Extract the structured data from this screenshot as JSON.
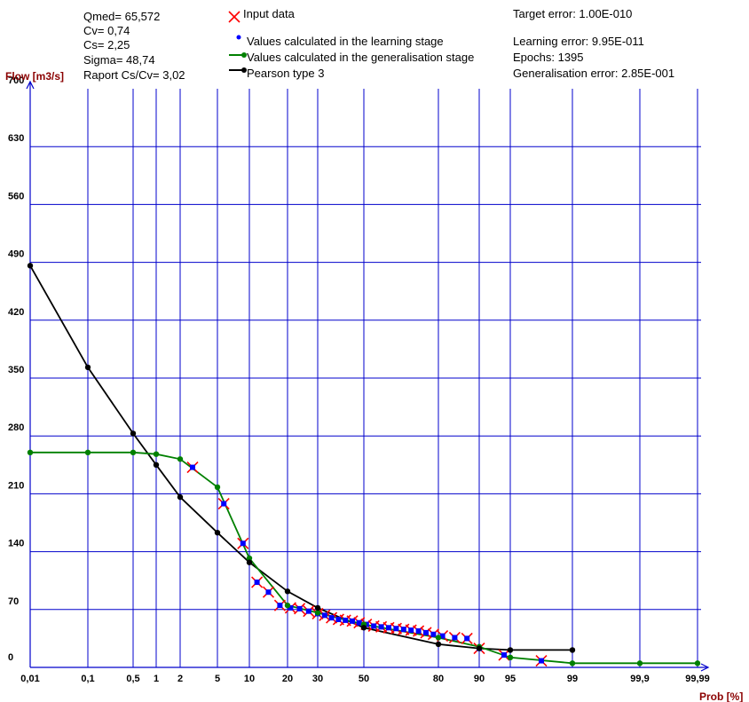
{
  "stats": [
    "Qmed= 65,572",
    "Cv= 0,74",
    "Cs= 2,25",
    "Sigma= 48,74",
    "Raport Cs/Cv= 3,02"
  ],
  "info": [
    "Target error: 1.00E-010",
    "Learning error: 9.95E-011",
    "Epochs: 1395",
    "Generalisation error: 2.85E-001"
  ],
  "colors": {
    "grid": "#0000cc",
    "input": "#ff0000",
    "learning": "#0000ff",
    "generalisation": "#008000",
    "pearson": "#000000",
    "axis_title": "#8b0000"
  },
  "chart_data": {
    "type": "line",
    "xlabel": "Prob [%]",
    "ylabel": "Flow [m3/s]",
    "x_scale": "probability",
    "ylim": [
      0,
      700
    ],
    "grid": true,
    "legend_position": "top-center",
    "x_ticks": [
      0.01,
      0.1,
      0.5,
      1,
      2,
      5,
      10,
      20,
      30,
      50,
      80,
      90,
      95,
      99,
      99.9,
      99.99
    ],
    "x_tick_labels": [
      "0,01",
      "0,1",
      "0,5",
      "1",
      "2",
      "5",
      "10",
      "20",
      "30",
      "50",
      "80",
      "90",
      "95",
      "99",
      "99,9",
      "99,99"
    ],
    "y_ticks": [
      0,
      70,
      140,
      210,
      280,
      350,
      420,
      490,
      560,
      630,
      700
    ],
    "series": [
      {
        "name": "Input data",
        "marker": "x",
        "x": [
          3,
          6,
          9,
          12,
          15,
          18,
          21,
          24,
          27,
          30,
          33,
          36,
          39,
          42,
          45,
          48,
          51,
          54,
          57,
          60,
          63,
          66,
          69,
          72,
          75,
          78,
          81,
          84,
          87,
          90,
          94,
          97
        ],
        "values": [
          242,
          198,
          150,
          103,
          91,
          75,
          72,
          71,
          68,
          65,
          63,
          60,
          58,
          57,
          56,
          54,
          52,
          50,
          49,
          48,
          47,
          46,
          45,
          44,
          42,
          40,
          38,
          36,
          35,
          23,
          15,
          8
        ]
      },
      {
        "name": "Values calculated in the learning stage",
        "marker": "dot",
        "x": [
          3,
          6,
          9,
          12,
          15,
          18,
          21,
          24,
          27,
          30,
          33,
          36,
          39,
          42,
          45,
          48,
          51,
          54,
          57,
          60,
          63,
          66,
          69,
          72,
          75,
          78,
          81,
          84,
          87,
          90,
          94,
          97
        ],
        "values": [
          242,
          198,
          150,
          103,
          91,
          75,
          72,
          71,
          68,
          65,
          63,
          60,
          58,
          57,
          56,
          54,
          52,
          50,
          49,
          48,
          47,
          46,
          45,
          44,
          42,
          40,
          38,
          36,
          35,
          23,
          15,
          8
        ]
      },
      {
        "name": "Values calculated in the generalisation stage",
        "marker": "dot",
        "x": [
          0.01,
          0.1,
          0.5,
          1,
          2,
          5,
          10,
          20,
          30,
          50,
          80,
          90,
          95,
          99,
          99.9,
          99.99
        ],
        "values": [
          260,
          260,
          260,
          258,
          252,
          218,
          132,
          75,
          66,
          52,
          36,
          25,
          12,
          5,
          5,
          5
        ]
      },
      {
        "name": "Pearson type 3",
        "marker": "dot",
        "x": [
          0.01,
          0.1,
          0.5,
          1,
          2,
          5,
          10,
          20,
          30,
          50,
          80,
          90,
          95,
          99
        ],
        "values": [
          486,
          363,
          283,
          245,
          206,
          163,
          127,
          92,
          72,
          48,
          28,
          23,
          21,
          21
        ]
      }
    ]
  }
}
